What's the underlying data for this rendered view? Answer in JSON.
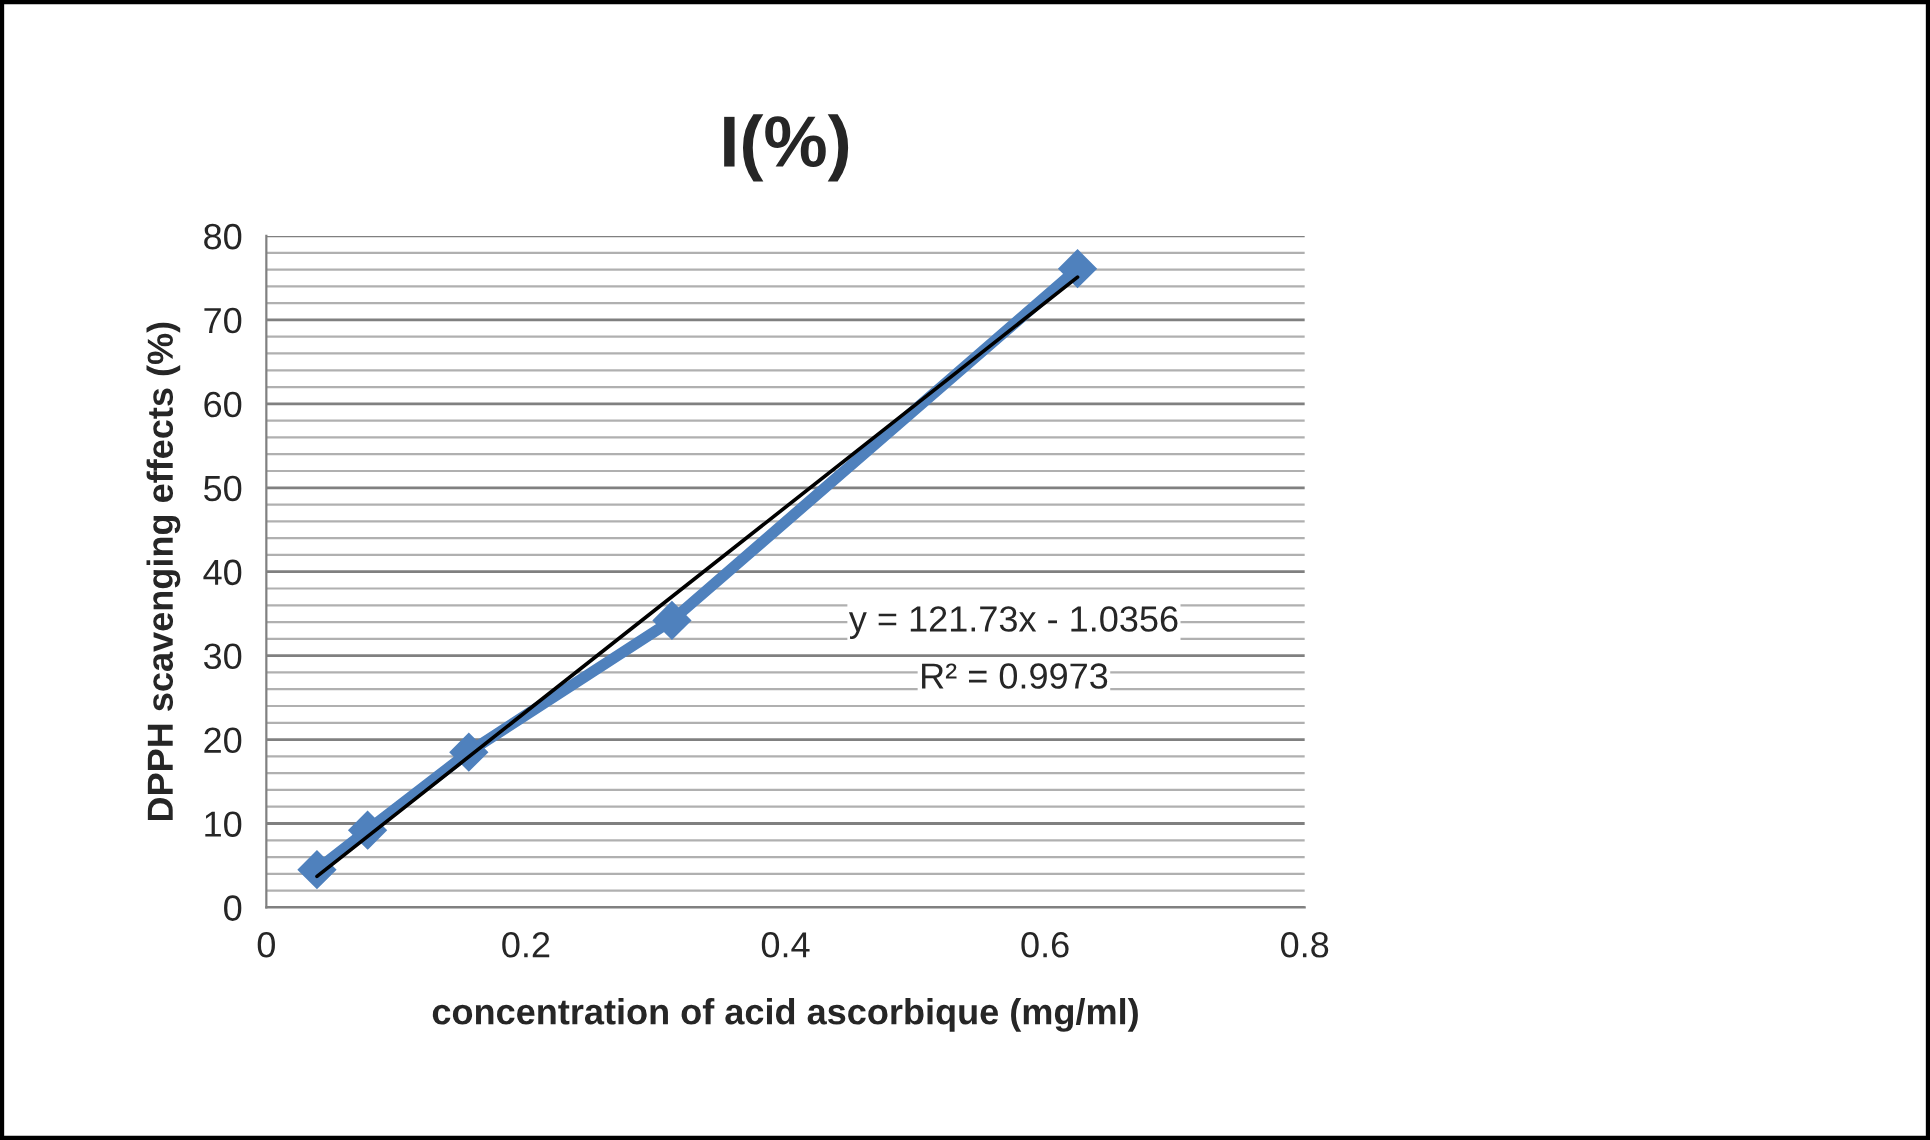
{
  "chart_data": {
    "type": "line",
    "title": "I(%)",
    "xlabel": "concentration of acid ascorbique (mg/ml)",
    "ylabel": "DPPH scavenging effects (%)",
    "x": [
      0.039,
      0.078,
      0.156,
      0.3125,
      0.625
    ],
    "series": [
      {
        "color": "#4f81bd",
        "values": [
          4.5,
          9.2,
          18.5,
          34.2,
          76.1
        ],
        "marker": "diamond"
      },
      {
        "type": "line",
        "color": "#000000",
        "x": [
          0.039,
          0.625
        ],
        "values": [
          3.7,
          75.1
        ],
        "marker": "none"
      }
    ],
    "xlim": [
      0,
      0.8
    ],
    "xticks": [
      0,
      0.2,
      0.4,
      0.6,
      0.8
    ],
    "ylim": [
      0,
      80
    ],
    "yticks": [
      0,
      10,
      20,
      30,
      40,
      50,
      60,
      70,
      80
    ],
    "grid": "y",
    "legend": false,
    "annotations": [
      "y = 121.73x - 1.0356",
      "R² = 0.9973"
    ]
  }
}
